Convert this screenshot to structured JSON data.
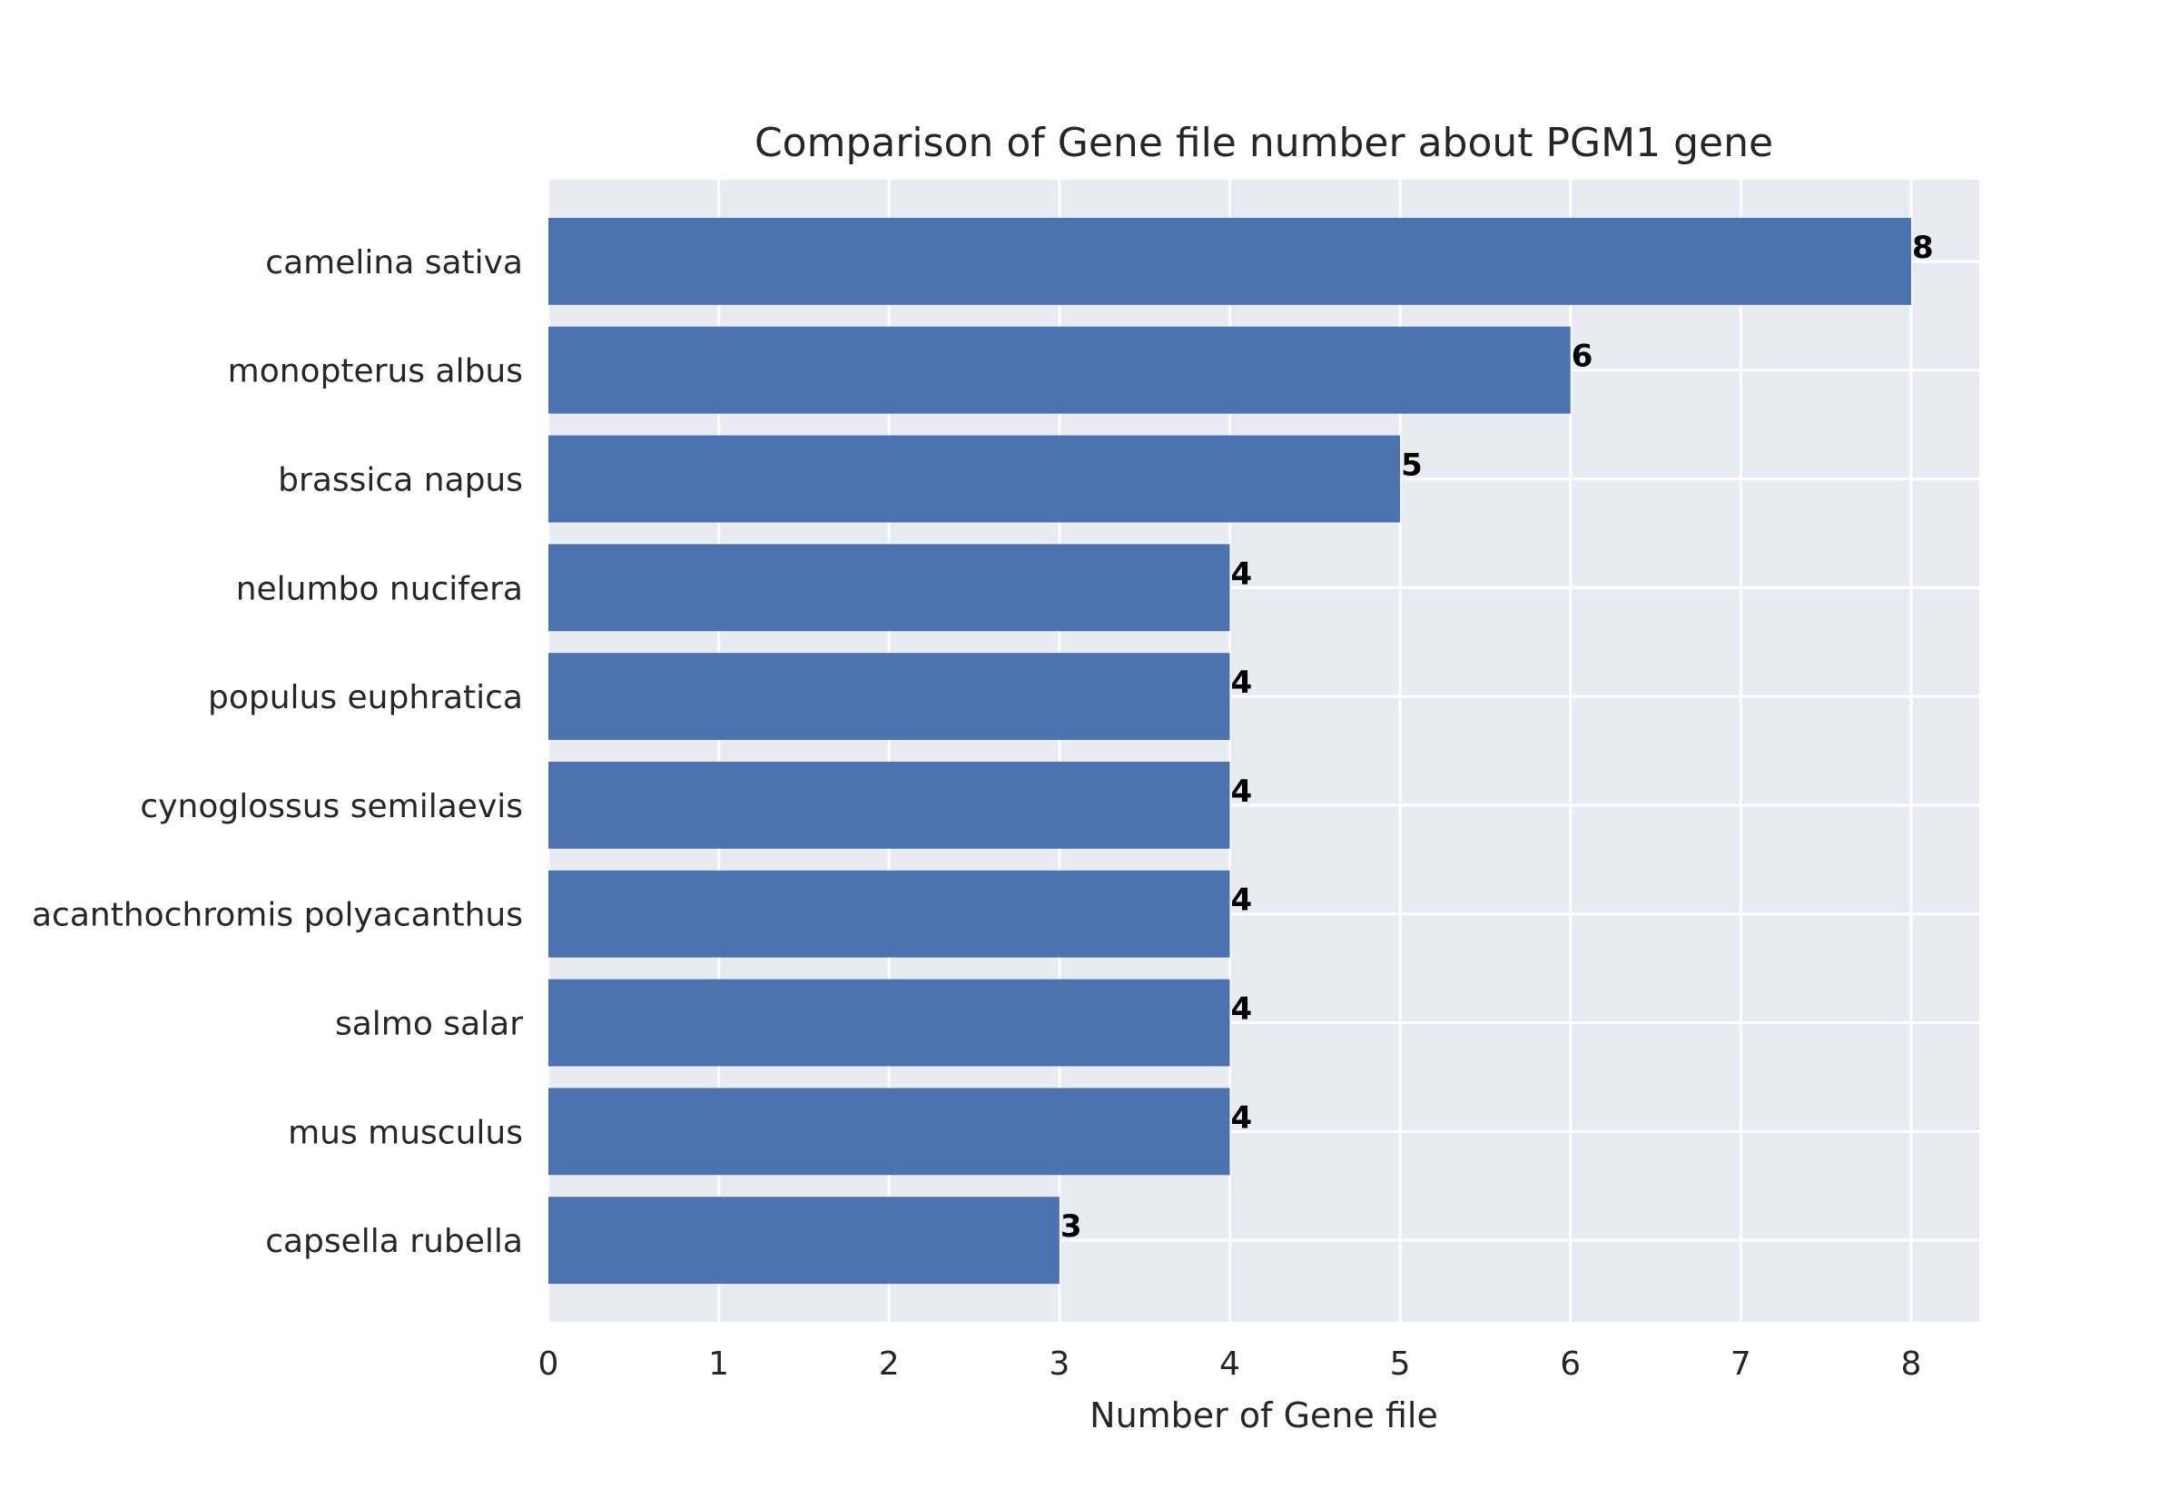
{
  "chart_data": {
    "type": "bar",
    "orientation": "horizontal",
    "title": "Comparison of Gene file number about PGM1 gene",
    "xlabel": "Number of Gene file",
    "ylabel": "",
    "categories": [
      "camelina sativa",
      "monopterus albus",
      "brassica napus",
      "nelumbo nucifera",
      "populus euphratica",
      "cynoglossus semilaevis",
      "acanthochromis polyacanthus",
      "salmo salar",
      "mus musculus",
      "capsella rubella"
    ],
    "values": [
      8,
      6,
      5,
      4,
      4,
      4,
      4,
      4,
      4,
      3
    ],
    "data_labels": [
      "8",
      "6",
      "5",
      "4",
      "4",
      "4",
      "4",
      "4",
      "4",
      "3"
    ],
    "xlim": [
      0,
      8.4
    ],
    "xticks": [
      0,
      1,
      2,
      3,
      4,
      5,
      6,
      7,
      8
    ],
    "xtick_labels": [
      "0",
      "1",
      "2",
      "3",
      "4",
      "5",
      "6",
      "7",
      "8"
    ],
    "grid": true,
    "colors": {
      "bar": "#4c72b0",
      "background": "#eaeaf2",
      "grid": "#ffffff"
    }
  }
}
